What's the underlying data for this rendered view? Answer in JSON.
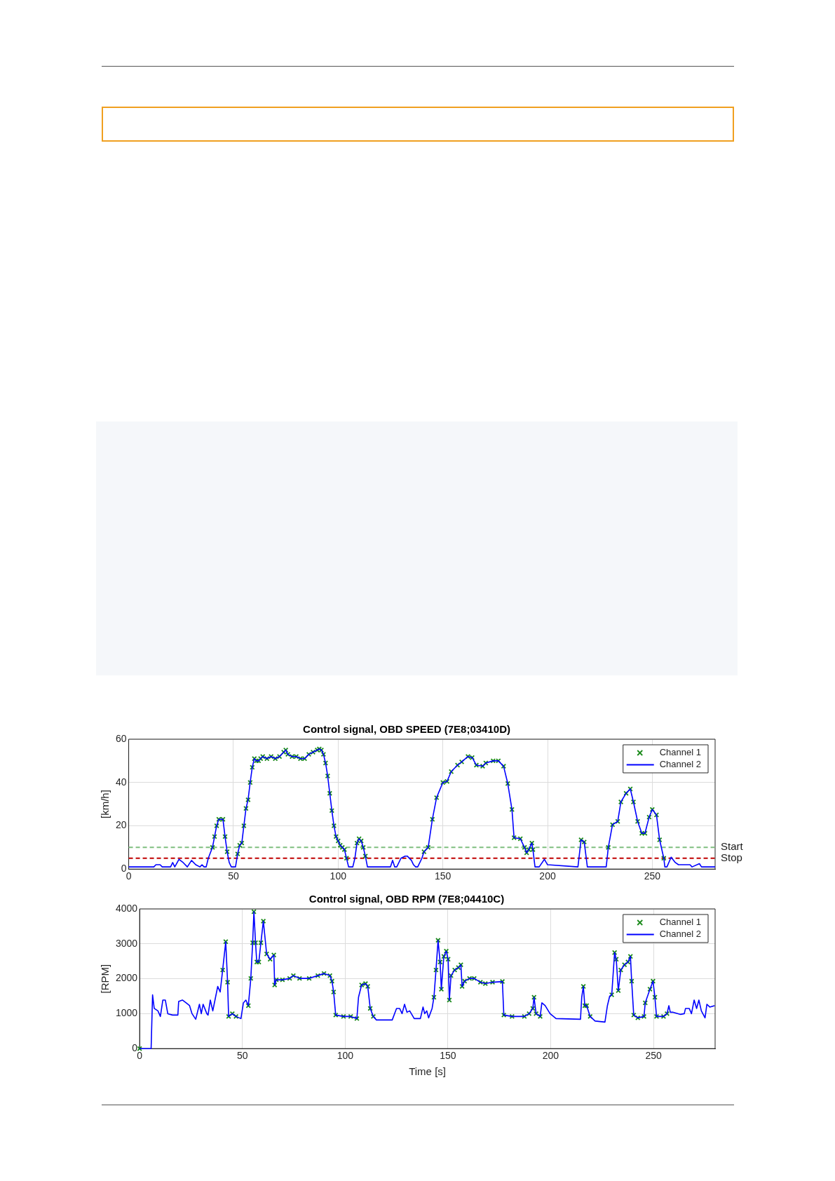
{
  "chart_data": [
    {
      "type": "line",
      "title": "Control signal, OBD SPEED (7E8;03410D)",
      "ylabel": "[km/h]",
      "xlim": [
        0,
        280
      ],
      "xticks": [
        0,
        50,
        100,
        150,
        200,
        250
      ],
      "ylim": [
        0,
        60
      ],
      "yticks": [
        0,
        20,
        40,
        60
      ],
      "grid": true,
      "legend": "top right",
      "x": [
        0,
        12,
        13,
        15,
        16,
        20,
        21,
        22,
        24,
        26,
        28,
        30,
        32,
        34,
        35,
        36,
        37,
        38,
        40,
        41,
        42,
        43,
        45,
        46,
        47,
        48,
        49,
        51,
        52,
        53,
        54,
        55,
        56,
        57,
        58,
        59,
        60,
        61,
        62,
        63,
        64,
        66,
        68,
        70,
        72,
        74,
        75,
        76,
        78,
        80,
        82,
        84,
        86,
        88,
        90,
        91,
        92,
        93,
        94,
        95,
        96,
        97,
        98,
        99,
        100,
        101,
        102,
        103,
        104,
        105,
        107,
        108,
        109,
        110,
        111,
        112,
        113,
        114,
        125,
        126,
        127,
        128,
        130,
        132,
        133,
        135,
        136,
        137,
        138,
        140,
        141,
        143,
        145,
        147,
        150,
        152,
        154,
        157,
        159,
        162,
        164,
        166,
        169,
        170.5,
        174,
        176.5,
        179,
        181,
        183,
        184,
        187,
        189,
        190,
        191,
        192.5,
        193,
        194,
        196,
        198.5,
        200,
        214.5,
        216,
        217.5,
        219,
        228,
        229,
        231,
        233.5,
        235,
        237.5,
        239.5,
        241,
        243,
        245,
        246.5,
        248.5,
        250,
        252,
        253.5,
        255.5,
        256,
        257,
        259,
        261,
        262.5,
        268,
        269,
        272.5,
        273.5,
        280
      ],
      "series": [
        {
          "name": "Channel 1",
          "type": "scatter",
          "marker": "cross",
          "color": "#1a8a1a",
          "x": [
            40,
            41,
            42,
            43,
            45,
            46,
            47,
            52,
            53,
            54,
            55,
            56,
            57,
            58,
            59,
            60,
            61,
            62,
            63,
            64,
            66,
            68,
            70,
            72,
            74,
            75,
            76,
            78,
            80,
            82,
            84,
            86,
            88,
            90,
            91,
            92,
            93,
            94,
            95,
            96,
            97,
            98,
            99,
            100,
            101,
            102,
            103,
            104,
            109,
            110,
            111,
            112,
            113,
            141,
            143,
            145,
            147,
            150,
            152,
            154,
            157,
            159,
            162,
            164,
            166,
            169,
            170.5,
            174,
            176.5,
            179,
            181,
            183,
            184,
            187,
            189,
            190,
            191,
            192.5,
            193,
            216,
            217.5,
            229,
            231,
            233.5,
            235,
            237.5,
            239.5,
            241,
            243,
            245,
            246.5,
            248.5,
            250,
            252,
            253.5,
            255.5
          ],
          "values": [
            10,
            15,
            20,
            23,
            23,
            15,
            8,
            7,
            11,
            12,
            20,
            28,
            32,
            40,
            47,
            51,
            50,
            50,
            51,
            52,
            51,
            52,
            51,
            52,
            54,
            55,
            53,
            52,
            52,
            51,
            51,
            53,
            54,
            55,
            55.5,
            55,
            53,
            49,
            43,
            35,
            27,
            20,
            15,
            13,
            11,
            10,
            9,
            5,
            12,
            14,
            13,
            10,
            6,
            8,
            10,
            23,
            33,
            40,
            40.5,
            45,
            48,
            49.5,
            52,
            51.5,
            48,
            47.5,
            49,
            50,
            50,
            47.5,
            39.5,
            27.5,
            14.5,
            14,
            10,
            7.5,
            9,
            12,
            9,
            13.5,
            12.5,
            10,
            20.5,
            22,
            31,
            35,
            37,
            31,
            22,
            16.5,
            16.5,
            24,
            27.5,
            25,
            13.5,
            5
          ]
        },
        {
          "name": "Channel 2",
          "marker": "none",
          "color": "#0000ff",
          "values": [
            1,
            1,
            2,
            2,
            1,
            1,
            3,
            1,
            4.5,
            3,
            1,
            4,
            2,
            1,
            2,
            1,
            1,
            5,
            10,
            15,
            20,
            23,
            23,
            15,
            8,
            3,
            1,
            1,
            7,
            11,
            12,
            20,
            28,
            32,
            40,
            47,
            51,
            50,
            50,
            51,
            52,
            51,
            52,
            51,
            52,
            54,
            55,
            53,
            52,
            52,
            51,
            51,
            53,
            54,
            55,
            55.5,
            55,
            53,
            49,
            43,
            35,
            27,
            20,
            15,
            13,
            11,
            10,
            9,
            5,
            1,
            1,
            5,
            12,
            14,
            13,
            10,
            6,
            1,
            1,
            4,
            1,
            1,
            5,
            6,
            6,
            4,
            2,
            1,
            1,
            5,
            8,
            10,
            23,
            33,
            40,
            40.5,
            45,
            48,
            49.5,
            52,
            51.5,
            48,
            47.5,
            49,
            50,
            50,
            47.5,
            39.5,
            27.5,
            14.5,
            14,
            10,
            7.5,
            9,
            12,
            9,
            1,
            1,
            4.5,
            2,
            1,
            13.5,
            12.5,
            1,
            1,
            10,
            20.5,
            22,
            31,
            35,
            37,
            31,
            22,
            16.5,
            16.5,
            24,
            27.5,
            25,
            13.5,
            5,
            1,
            1,
            5.5,
            3,
            2,
            2,
            1,
            2.5,
            1,
            1
          ]
        }
      ],
      "ref_lines": [
        {
          "axis": "y",
          "value": 10,
          "label": "Start",
          "color": "#7fbf7f",
          "line_style": "dashed"
        },
        {
          "axis": "y",
          "value": 5,
          "label": "Stop",
          "color": "#c00000",
          "line_style": "dashed"
        }
      ]
    },
    {
      "type": "line",
      "title": "Control signal, OBD RPM (7E8;04410C)",
      "xlabel": "Time [s]",
      "ylabel": "[RPM]",
      "xlim": [
        0,
        280
      ],
      "xticks": [
        0,
        50,
        100,
        150,
        200,
        250
      ],
      "ylim": [
        0,
        4000
      ],
      "yticks": [
        0,
        1000,
        2000,
        3000,
        4000
      ],
      "grid": true,
      "legend": "top right",
      "x": [
        0,
        5.6,
        6.3,
        7.1,
        8.9,
        10.1,
        11.3,
        12.5,
        13.7,
        16,
        18.6,
        19,
        20.8,
        22.6,
        24.3,
        25.5,
        27.3,
        29.1,
        30,
        30.9,
        32.7,
        33.3,
        34.4,
        35.6,
        36.8,
        38,
        39.2,
        40.4,
        41.9,
        42.8,
        43.3,
        45.1,
        46.9,
        49.3,
        50.5,
        51.7,
        52.9,
        54.1,
        55,
        55.6,
        56.4,
        57,
        58,
        59,
        60.2,
        61.8,
        63.5,
        65.3,
        65.7,
        66.5,
        69.5,
        73,
        74.8,
        77.8,
        82.5,
        86.7,
        89.7,
        92.6,
        93.6,
        94.4,
        95.4,
        99.2,
        102.7,
        105.7,
        106.5,
        108,
        109.9,
        111,
        112.2,
        113.7,
        115.2,
        122.9,
        125,
        126.5,
        127.7,
        128.9,
        130.1,
        131.4,
        133.6,
        136.6,
        137.9,
        138.7,
        139.7,
        140.6,
        142.3,
        143.2,
        144.2,
        145.2,
        146.2,
        146.8,
        148,
        149.2,
        150.1,
        150.7,
        151.5,
        153.3,
        155.1,
        156.3,
        156.9,
        158.1,
        160.5,
        162.8,
        165.8,
        168.2,
        171.7,
        176.5,
        177.2,
        181.2,
        187.2,
        189.5,
        191.3,
        191.9,
        192.9,
        194.9,
        195.7,
        197.3,
        199.7,
        202.6,
        214.5,
        215.1,
        215.9,
        216.6,
        217.5,
        219.2,
        221.6,
        226.4,
        227.6,
        228.7,
        229.7,
        231.1,
        231.9,
        232.9,
        234.1,
        235.9,
        237.6,
        238.8,
        239.4,
        240.4,
        242.4,
        245.4,
        246,
        248.3,
        249.8,
        250.7,
        251.5,
        254.9,
        256.6,
        257.5,
        258.2,
        259.6,
        263.2,
        265,
        265.6,
        267.4,
        268.5,
        269.8,
        271,
        272.1,
        273.3,
        275.1,
        276,
        277.4,
        279.8
      ],
      "series": [
        {
          "name": "Channel 1",
          "type": "scatter",
          "marker": "cross",
          "color": "#1a8a1a",
          "x": [
            0,
            40.4,
            41.9,
            42.8,
            43.3,
            45.1,
            46.9,
            52.9,
            54.1,
            55,
            55.6,
            56.4,
            57,
            58,
            59,
            60.2,
            61.8,
            63.5,
            65.3,
            65.7,
            66.5,
            69.5,
            73,
            74.8,
            77.8,
            82.5,
            86.7,
            89.7,
            92.6,
            93.6,
            94.4,
            95.4,
            99.2,
            102.7,
            105.7,
            108,
            109.9,
            111,
            112.2,
            113.7,
            143.2,
            144.2,
            145.2,
            146.2,
            146.8,
            148,
            149.2,
            150.1,
            150.7,
            151.5,
            153.3,
            155.1,
            156.3,
            156.9,
            158.1,
            160.5,
            162.8,
            165.8,
            168.2,
            171.7,
            176.5,
            177.2,
            181.2,
            187.2,
            189.5,
            191.3,
            191.9,
            192.9,
            194.9,
            215.9,
            216.6,
            217.5,
            219.2,
            229.7,
            231.1,
            231.9,
            232.9,
            234.1,
            235.9,
            237.6,
            238.8,
            239.4,
            240.4,
            242.4,
            245.4,
            246,
            248.3,
            249.8,
            250.7,
            251.5,
            254.9,
            256.6
          ],
          "values": [
            0,
            2250,
            3060,
            1900,
            920,
            1000,
            920,
            1230,
            2010,
            3030,
            3920,
            3030,
            2480,
            2480,
            3030,
            3650,
            2710,
            2560,
            2680,
            1820,
            1970,
            1970,
            2010,
            2090,
            2010,
            2010,
            2090,
            2150,
            2090,
            1930,
            1620,
            960,
            920,
            920,
            860,
            1820,
            1860,
            1780,
            1150,
            920,
            1470,
            2250,
            3100,
            2480,
            1700,
            2640,
            2790,
            2560,
            1390,
            2090,
            2250,
            2320,
            2400,
            1780,
            1930,
            2010,
            2010,
            1900,
            1860,
            1900,
            1920,
            960,
            920,
            920,
            1000,
            1150,
            1470,
            1000,
            920,
            1780,
            1230,
            1230,
            920,
            1540,
            2750,
            2560,
            1660,
            2250,
            2400,
            2480,
            2640,
            1930,
            960,
            880,
            920,
            1310,
            1700,
            1930,
            1470,
            920,
            920,
            1000
          ]
        },
        {
          "name": "Channel 2",
          "marker": "none",
          "color": "#0000ff",
          "values": [
            0,
            0,
            1540,
            1150,
            1080,
            920,
            1390,
            1390,
            1000,
            960,
            960,
            1350,
            1390,
            1310,
            1230,
            1000,
            840,
            1270,
            1000,
            1270,
            1000,
            960,
            1390,
            1080,
            1430,
            1780,
            1620,
            2250,
            3060,
            1900,
            920,
            1000,
            920,
            860,
            1310,
            1390,
            1230,
            2010,
            3030,
            3920,
            3030,
            2480,
            2480,
            3030,
            3650,
            2710,
            2560,
            2680,
            1820,
            1970,
            1970,
            2010,
            2090,
            2010,
            2010,
            2090,
            2150,
            2090,
            1930,
            1620,
            960,
            920,
            920,
            860,
            1470,
            1820,
            1860,
            1780,
            1150,
            920,
            820,
            820,
            1150,
            1150,
            1000,
            1270,
            1040,
            1080,
            860,
            860,
            1190,
            1000,
            1080,
            880,
            1150,
            1470,
            2250,
            3100,
            2480,
            1700,
            2640,
            2790,
            2560,
            1390,
            2090,
            2250,
            2320,
            2400,
            1780,
            1930,
            2010,
            2010,
            1900,
            1860,
            1900,
            1920,
            960,
            920,
            920,
            1000,
            1150,
            1470,
            1000,
            920,
            1310,
            1230,
            1000,
            860,
            840,
            1470,
            1780,
            1230,
            1230,
            920,
            790,
            760,
            1230,
            1500,
            1540,
            2750,
            2560,
            1660,
            2250,
            2400,
            2480,
            2640,
            1930,
            960,
            880,
            920,
            1310,
            1700,
            1930,
            1470,
            920,
            920,
            1000,
            1230,
            1040,
            1040,
            980,
            1000,
            1150,
            1150,
            1000,
            1390,
            1150,
            1390,
            1080,
            880,
            1270,
            1190,
            1230
          ]
        }
      ]
    }
  ]
}
